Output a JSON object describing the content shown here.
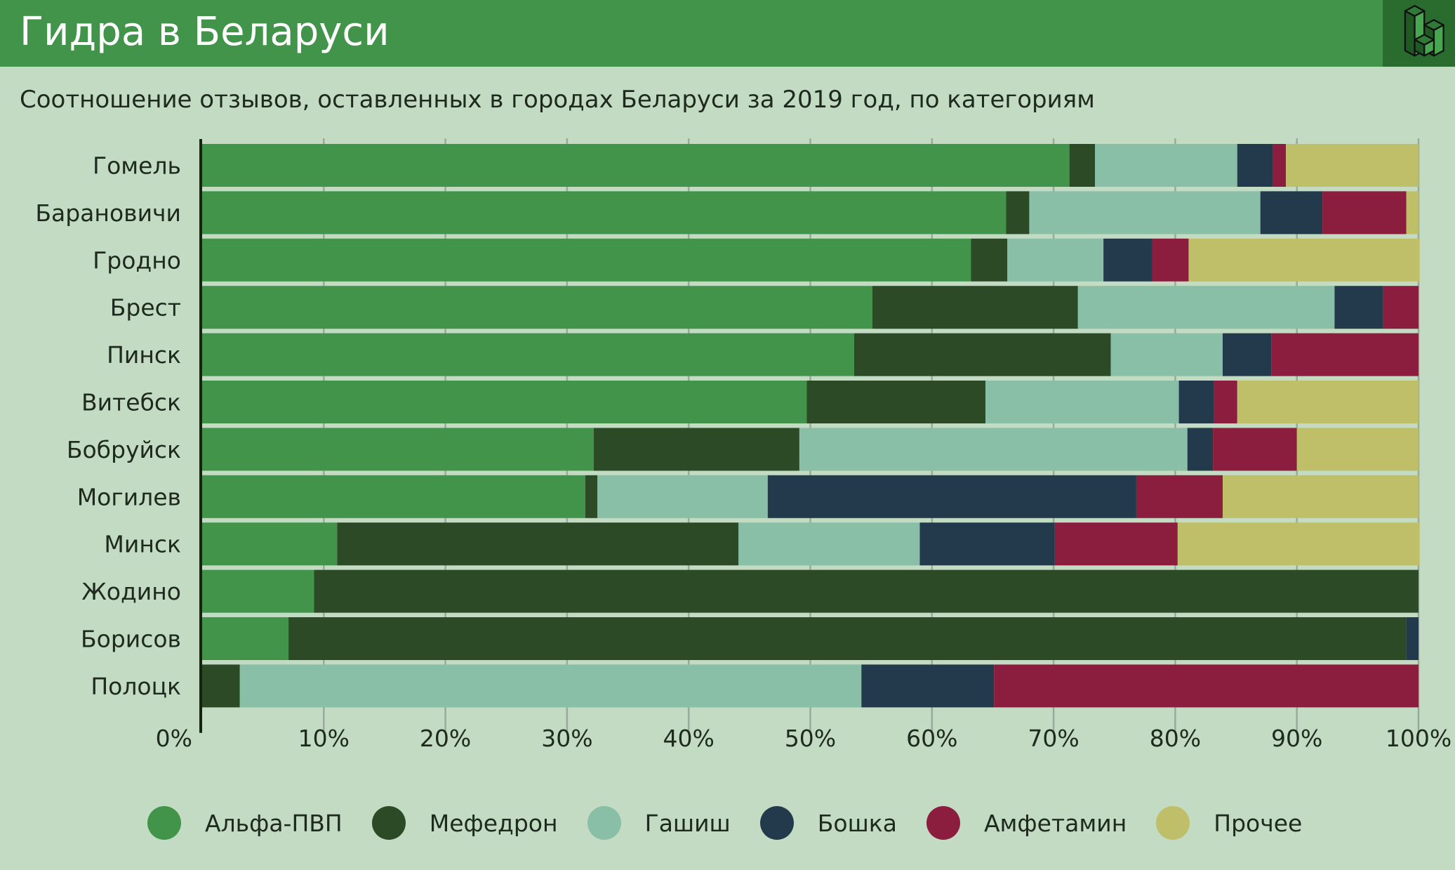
{
  "header": {
    "title": "Гидра в Беларуси",
    "logo_icon": "isometric-blocks-logo"
  },
  "chart_data": {
    "type": "bar",
    "orientation": "horizontal",
    "stacked": true,
    "title": "Соотношение отзывов, оставленных в городах Беларуси за 2019 год, по категориям",
    "xlabel": "",
    "ylabel": "",
    "xlim": [
      0,
      100
    ],
    "x_ticks": [
      "0%",
      "10%",
      "20%",
      "30%",
      "40%",
      "50%",
      "60%",
      "70%",
      "80%",
      "90%",
      "100%"
    ],
    "grid": true,
    "legend_position": "bottom",
    "categories": [
      "Гомель",
      "Барановичи",
      "Гродно",
      "Брест",
      "Пинск",
      "Витебск",
      "Бобруйск",
      "Могилев",
      "Минск",
      "Жодино",
      "Борисов",
      "Полоцк"
    ],
    "series": [
      {
        "name": "Альфа-ПВП",
        "color": "#42944a",
        "values": [
          71.3,
          66.1,
          63.2,
          55.1,
          53.6,
          49.7,
          32.2,
          31.5,
          11.1,
          9.2,
          7.1,
          0
        ]
      },
      {
        "name": "Мефедрон",
        "color": "#2d4a27",
        "values": [
          2.1,
          1.9,
          3.0,
          16.9,
          21.1,
          14.7,
          16.9,
          1.0,
          33.0,
          90.8,
          91.9,
          3.1
        ]
      },
      {
        "name": "Гашиш",
        "color": "#88bfa6",
        "values": [
          11.7,
          19.0,
          7.9,
          21.1,
          9.2,
          15.9,
          31.9,
          14.0,
          14.9,
          0,
          0,
          51.1
        ]
      },
      {
        "name": "Бошка",
        "color": "#223a4b",
        "values": [
          2.9,
          5.1,
          4.0,
          4.0,
          4.0,
          2.9,
          2.1,
          30.3,
          11.1,
          0,
          1.0,
          10.9
        ]
      },
      {
        "name": "Амфетамин",
        "color": "#8b1e3f",
        "values": [
          1.1,
          6.9,
          3.0,
          2.9,
          12.1,
          1.9,
          6.9,
          7.1,
          10.1,
          0,
          0,
          34.9
        ]
      },
      {
        "name": "Прочее",
        "color": "#bfbf6a",
        "values": [
          10.9,
          1.0,
          19.0,
          0,
          0,
          14.9,
          10.0,
          16.1,
          19.9,
          0,
          0,
          0
        ]
      }
    ]
  }
}
